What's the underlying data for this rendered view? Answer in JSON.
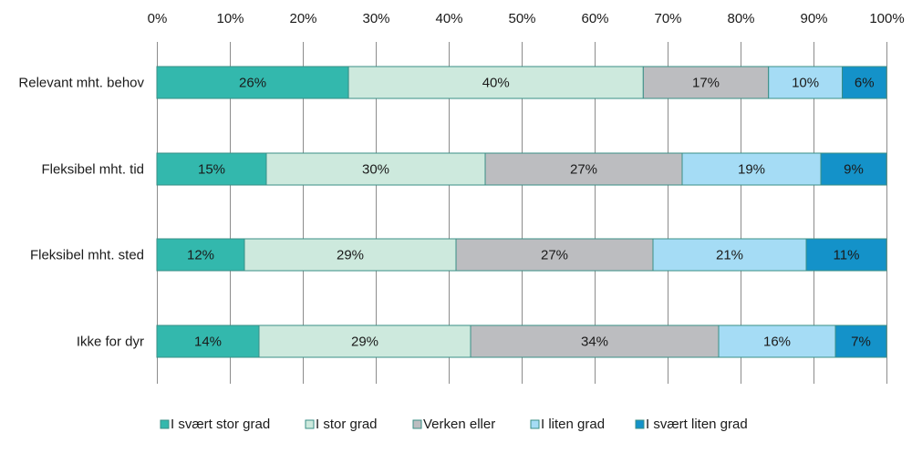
{
  "chart_data": {
    "type": "bar",
    "orientation": "horizontal",
    "stacked": true,
    "percent": true,
    "title": "",
    "xlabel": "",
    "ylabel": "",
    "xlim": [
      0,
      100
    ],
    "grid": true,
    "x_axis_position": "top",
    "x_ticks": [
      "0%",
      "10%",
      "20%",
      "30%",
      "40%",
      "50%",
      "60%",
      "70%",
      "80%",
      "90%",
      "100%"
    ],
    "categories": [
      "Relevant mht. behov",
      "Fleksibel mht. tid",
      "Fleksibel mht. sted",
      "Ikke for dyr"
    ],
    "series": [
      {
        "name": "I svært stor grad",
        "color": "#33b8ad",
        "values": [
          26,
          15,
          12,
          14
        ]
      },
      {
        "name": "I stor grad",
        "color": "#cde9dd",
        "values": [
          40,
          30,
          29,
          29
        ]
      },
      {
        "name": "Verken eller",
        "color": "#bcbdc0",
        "values": [
          17,
          27,
          27,
          34
        ]
      },
      {
        "name": "I liten grad",
        "color": "#a5dcf5",
        "values": [
          10,
          19,
          21,
          16
        ]
      },
      {
        "name": "I svært liten grad",
        "color": "#1492c9",
        "values": [
          6,
          9,
          11,
          7
        ]
      }
    ],
    "data_label_suffix": "%",
    "legend_position": "bottom",
    "segment_border_color": "#3a8f86",
    "gridline_color": "#8c8c8c"
  }
}
